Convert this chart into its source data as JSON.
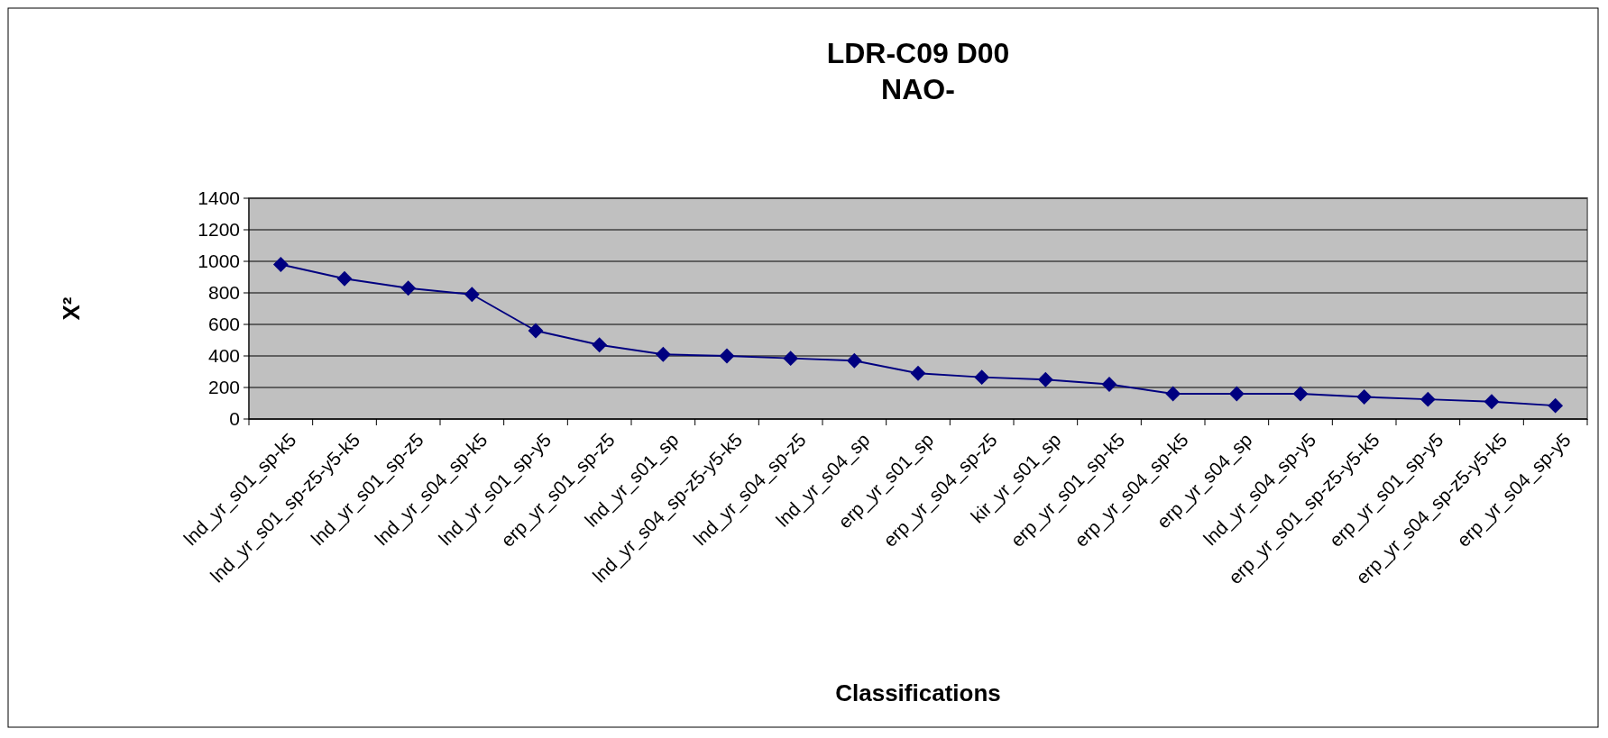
{
  "chart_data": {
    "type": "line",
    "title": "LDR-C09 D00\nNAO-",
    "xlabel": "Classifications",
    "ylabel": "X²",
    "categories": [
      "lnd_yr_s01_sp-k5",
      "lnd_yr_s01_sp-z5-y5-k5",
      "lnd_yr_s01_sp-z5",
      "lnd_yr_s04_sp-k5",
      "lnd_yr_s01_sp-y5",
      "erp_yr_s01_sp-z5",
      "lnd_yr_s01_sp",
      "lnd_yr_s04_sp-z5-y5-k5",
      "lnd_yr_s04_sp-z5",
      "lnd_yr_s04_sp",
      "erp_yr_s01_sp",
      "erp_yr_s04_sp-z5",
      "kir_yr_s01_sp",
      "erp_yr_s01_sp-k5",
      "erp_yr_s04_sp-k5",
      "erp_yr_s04_sp",
      "lnd_yr_s04_sp-y5",
      "erp_yr_s01_sp-z5-y5-k5",
      "erp_yr_s01_sp-y5",
      "erp_yr_s04_sp-z5-y5-k5",
      "erp_yr_s04_sp-y5"
    ],
    "series": [
      {
        "color": "#000080",
        "values": [
          980,
          890,
          830,
          790,
          560,
          470,
          410,
          400,
          385,
          370,
          290,
          265,
          250,
          220,
          160,
          160,
          160,
          140,
          125,
          110,
          85
        ]
      }
    ],
    "ylim": [
      0,
      1400
    ],
    "yticks": [
      0,
      200,
      400,
      600,
      800,
      1000,
      1200,
      1400
    ],
    "grid": "y",
    "marker": "diamond",
    "line_style": "solid"
  }
}
